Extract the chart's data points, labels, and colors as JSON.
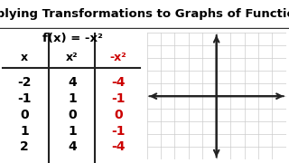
{
  "title": "Applying Transformations to Graphs of Functions",
  "equation": "f(x) = -x²",
  "col_headers": [
    "x",
    "x²",
    "-x²"
  ],
  "rows": [
    [
      "-2",
      "4",
      "-4"
    ],
    [
      "-1",
      "1",
      "-1"
    ],
    [
      "0",
      "0",
      "0"
    ],
    [
      "1",
      "1",
      "-1"
    ],
    [
      "2",
      "4",
      "-4"
    ]
  ],
  "red_col_idx": 2,
  "bg_color": "#ffffff",
  "grid_color": "#cccccc",
  "axis_color": "#222222",
  "text_color": "#000000",
  "red_color": "#cc0000",
  "title_fontsize": 9.5,
  "graph_xlim": [
    -5,
    5
  ],
  "graph_ylim": [
    -5,
    5
  ]
}
